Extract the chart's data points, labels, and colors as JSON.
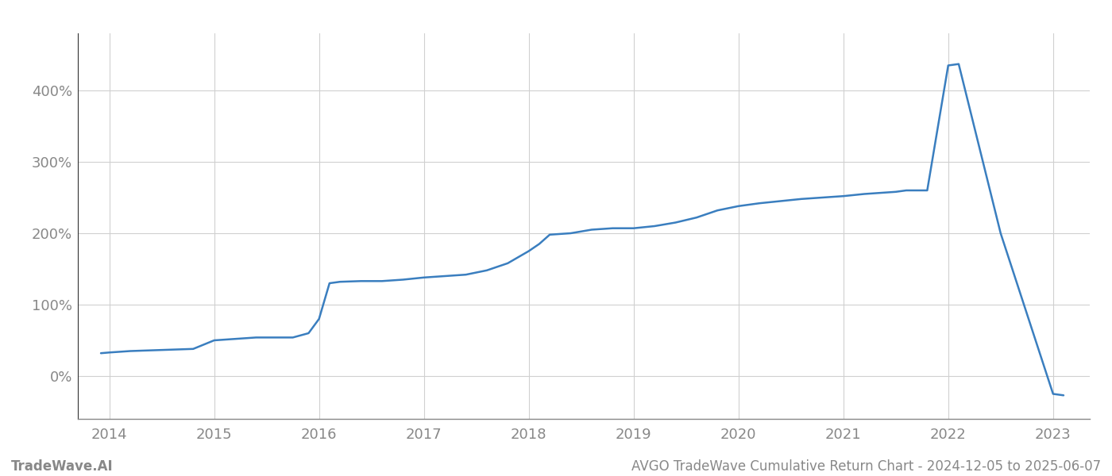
{
  "title": "AVGO TradeWave Cumulative Return Chart - 2024-12-05 to 2025-06-07",
  "footer_left": "TradeWave.AI",
  "line_color": "#3a7ebf",
  "background_color": "#ffffff",
  "grid_color": "#d0d0d0",
  "x_years": [
    2013.92,
    2014.0,
    2014.2,
    2014.4,
    2014.6,
    2014.8,
    2015.0,
    2015.2,
    2015.4,
    2015.6,
    2015.75,
    2015.9,
    2016.0,
    2016.1,
    2016.2,
    2016.4,
    2016.6,
    2016.8,
    2017.0,
    2017.2,
    2017.4,
    2017.6,
    2017.8,
    2018.0,
    2018.1,
    2018.2,
    2018.4,
    2018.6,
    2018.8,
    2019.0,
    2019.2,
    2019.4,
    2019.6,
    2019.8,
    2020.0,
    2020.2,
    2020.4,
    2020.6,
    2020.8,
    2021.0,
    2021.2,
    2021.4,
    2021.5,
    2021.6,
    2021.8,
    2022.0,
    2022.1,
    2022.5,
    2023.0,
    2023.1
  ],
  "y_values": [
    32,
    33,
    35,
    36,
    37,
    38,
    50,
    52,
    54,
    54,
    54,
    60,
    80,
    130,
    132,
    133,
    133,
    135,
    138,
    140,
    142,
    148,
    158,
    175,
    185,
    198,
    200,
    205,
    207,
    207,
    210,
    215,
    222,
    232,
    238,
    242,
    245,
    248,
    250,
    252,
    255,
    257,
    258,
    260,
    260,
    435,
    437,
    200,
    -25,
    -27
  ],
  "xlim": [
    2013.7,
    2023.35
  ],
  "ylim": [
    -60,
    480
  ],
  "yticks": [
    0,
    100,
    200,
    300,
    400
  ],
  "xticks": [
    2014,
    2015,
    2016,
    2017,
    2018,
    2019,
    2020,
    2021,
    2022,
    2023
  ],
  "tick_label_color": "#888888",
  "axis_label_fontsize": 13,
  "footer_fontsize": 12,
  "linewidth": 1.8
}
